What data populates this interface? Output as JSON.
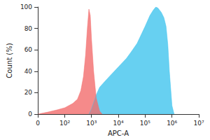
{
  "chart_data": {
    "type": "area",
    "xlabel": "APC-A",
    "ylabel": "Count (%)",
    "log": "x",
    "grid": false,
    "xlim": [
      0,
      10000000
    ],
    "xticks": [
      0,
      {
        "value": 100,
        "label": "10²"
      },
      {
        "value": 1000,
        "label": "10³"
      },
      {
        "value": 10000,
        "label": "10⁴"
      },
      {
        "value": 100000,
        "label": "10⁵"
      },
      {
        "value": 1000000,
        "label": "10⁶"
      },
      {
        "value": 10000000,
        "label": "10⁷"
      }
    ],
    "ylim": [
      0,
      100
    ],
    "yticks": [
      0,
      20,
      40,
      60,
      80,
      100
    ],
    "series": [
      {
        "color": "#41c4ee",
        "x": [
          800,
          1000,
          1500,
          2000,
          3000,
          5000,
          10000,
          20000,
          30000,
          50000,
          100000,
          150000,
          200000,
          250000,
          300000,
          400000,
          500000,
          600000,
          700000,
          800000,
          1000000,
          1200000
        ],
        "values": [
          0,
          5,
          18,
          25,
          30,
          36,
          44,
          52,
          58,
          66,
          82,
          92,
          97,
          100,
          99,
          95,
          90,
          82,
          65,
          40,
          8,
          0
        ]
      },
      {
        "color": "#f26d6d",
        "x": [
          0,
          20,
          50,
          100,
          200,
          300,
          400,
          500,
          600,
          700,
          800,
          900,
          1000,
          1200,
          1500,
          2000,
          2500
        ],
        "values": [
          0,
          2,
          4,
          6,
          10,
          14,
          22,
          35,
          55,
          80,
          98,
          92,
          70,
          40,
          15,
          3,
          0
        ]
      }
    ]
  }
}
